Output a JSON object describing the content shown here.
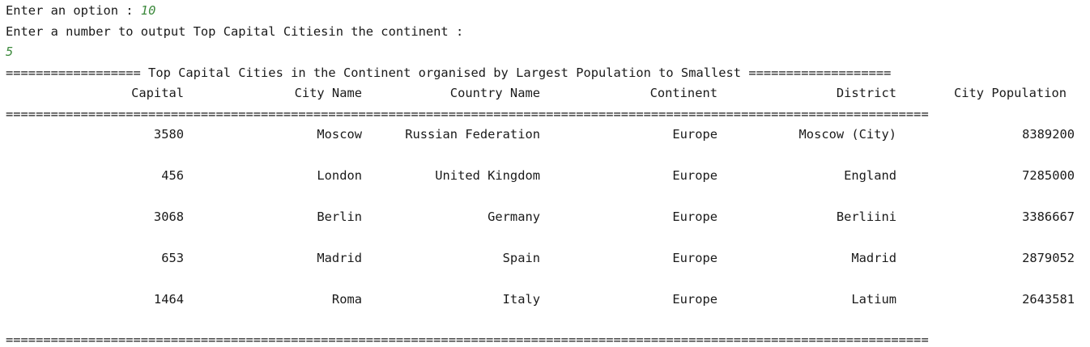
{
  "prompt": {
    "option_label": "Enter an option : ",
    "option_value": "10",
    "number_label": "Enter a number to output Top Capital Citiesin the continent :",
    "number_value": "5"
  },
  "report": {
    "title_line": "================== Top Capital Cities in the Continent organised by Largest Population to Smallest ===================",
    "rule_line": "===========================================================================================================================",
    "columns": {
      "capital": "Capital",
      "city": "City Name",
      "country": "Country Name",
      "continent": "Continent",
      "district": "District",
      "population": "City Population"
    },
    "rows": [
      {
        "capital": "3580",
        "city": "Moscow",
        "country": "Russian Federation",
        "continent": "Europe",
        "district": "Moscow (City)",
        "population": "8389200"
      },
      {
        "capital": "456",
        "city": "London",
        "country": "United Kingdom",
        "continent": "Europe",
        "district": "England",
        "population": "7285000"
      },
      {
        "capital": "3068",
        "city": "Berlin",
        "country": "Germany",
        "continent": "Europe",
        "district": "Berliini",
        "population": "3386667"
      },
      {
        "capital": "653",
        "city": "Madrid",
        "country": "Spain",
        "continent": "Europe",
        "district": "Madrid",
        "population": "2879052"
      },
      {
        "capital": "1464",
        "city": "Roma",
        "country": "Italy",
        "continent": "Europe",
        "district": "Latium",
        "population": "2643581"
      }
    ]
  }
}
